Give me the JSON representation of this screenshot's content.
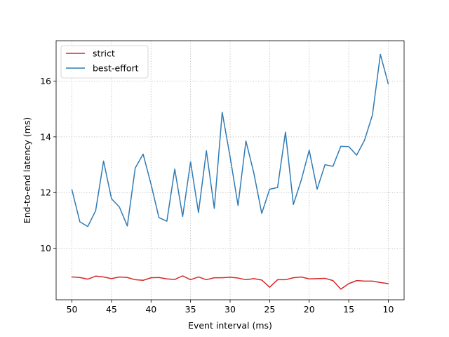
{
  "chart_data": {
    "type": "line",
    "xlabel": "Event interval (ms)",
    "ylabel": "End-to-end latency (ms)",
    "xlim": [
      52,
      8
    ],
    "ylim": [
      8.15,
      17.45
    ],
    "x_inverted": true,
    "xticks": [
      50,
      45,
      40,
      35,
      30,
      25,
      20,
      15,
      10
    ],
    "yticks": [
      10,
      12,
      14,
      16
    ],
    "grid": true,
    "legend_position": "top-left",
    "x": [
      50,
      49,
      48,
      47,
      46,
      45,
      44,
      43,
      42,
      41,
      40,
      39,
      38,
      37,
      36,
      35,
      34,
      33,
      32,
      31,
      30,
      29,
      28,
      27,
      26,
      25,
      24,
      23,
      22,
      21,
      20,
      19,
      18,
      17,
      16,
      15,
      14,
      13,
      12,
      11,
      10
    ],
    "series": [
      {
        "name": "strict",
        "color": "#d62728",
        "values": [
          8.97,
          8.95,
          8.89,
          9.0,
          8.97,
          8.91,
          8.97,
          8.95,
          8.87,
          8.85,
          8.94,
          8.95,
          8.9,
          8.88,
          9.01,
          8.87,
          8.97,
          8.87,
          8.94,
          8.94,
          8.96,
          8.93,
          8.87,
          8.91,
          8.86,
          8.6,
          8.87,
          8.87,
          8.94,
          8.97,
          8.9,
          8.91,
          8.92,
          8.84,
          8.53,
          8.73,
          8.84,
          8.82,
          8.82,
          8.77,
          8.73
        ]
      },
      {
        "name": "best-effort",
        "color": "#2f7bb6",
        "values": [
          12.1,
          10.95,
          10.78,
          11.35,
          13.13,
          11.78,
          11.48,
          10.8,
          12.88,
          13.38,
          12.3,
          11.1,
          10.97,
          12.84,
          11.14,
          13.1,
          11.28,
          13.5,
          11.43,
          14.88,
          13.28,
          11.54,
          13.85,
          12.7,
          11.25,
          12.12,
          12.18,
          14.17,
          11.57,
          12.45,
          13.52,
          12.12,
          13.0,
          12.94,
          13.66,
          13.65,
          13.34,
          13.88,
          14.79,
          16.96,
          15.9
        ]
      }
    ]
  }
}
